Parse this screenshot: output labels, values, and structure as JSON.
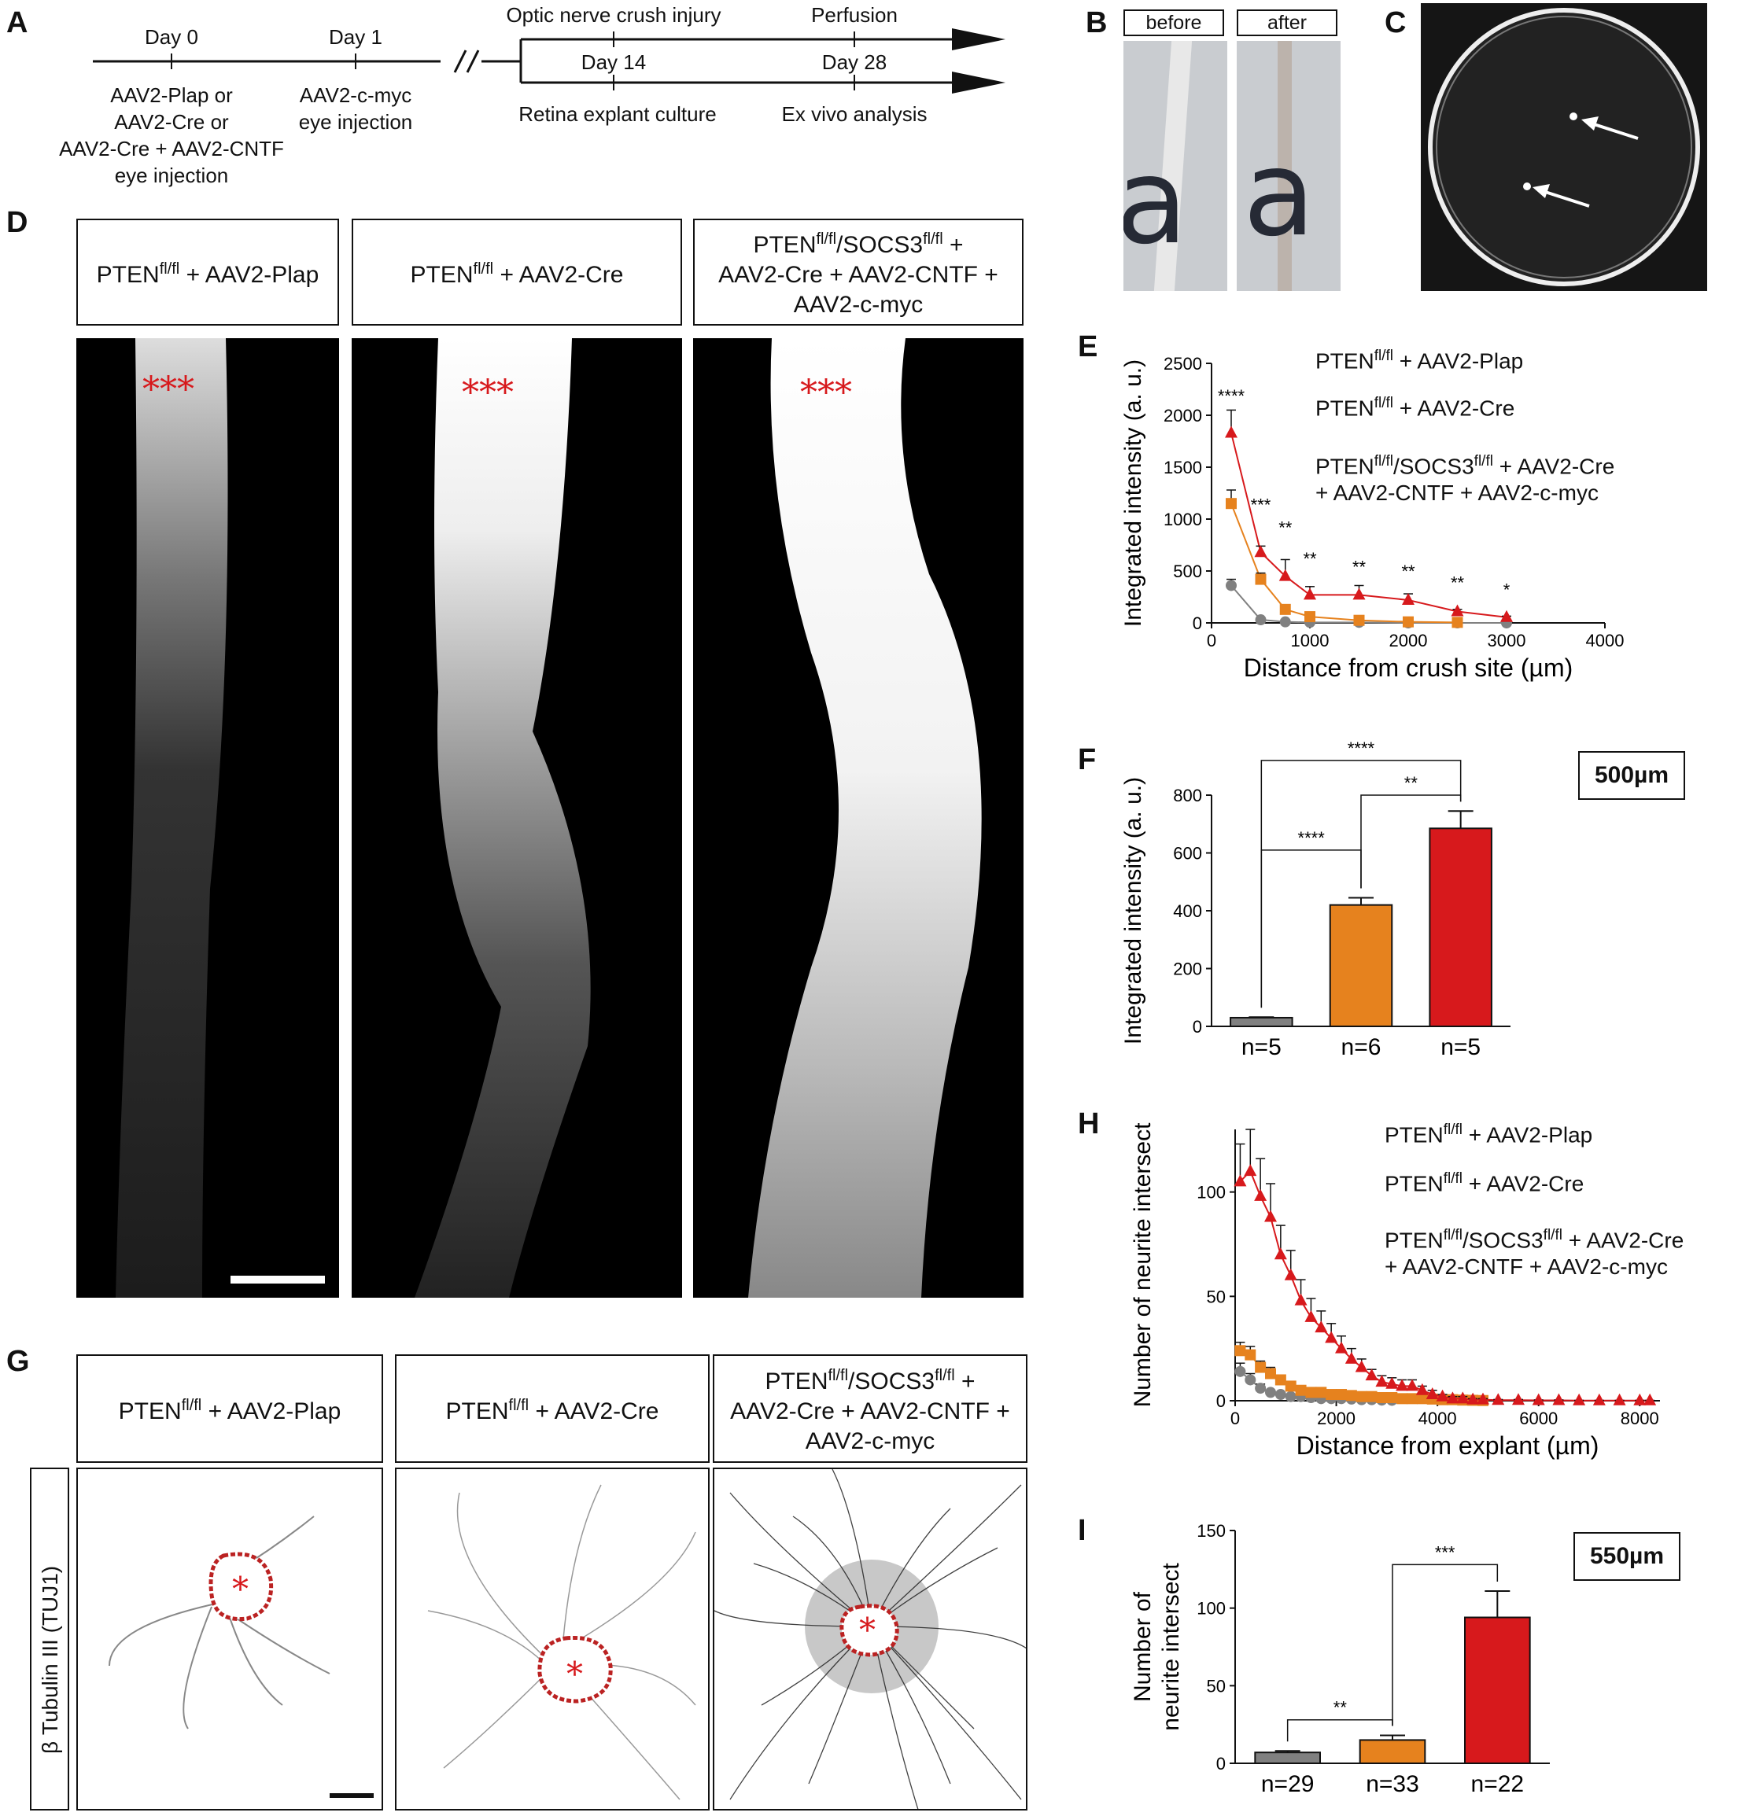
{
  "panels": {
    "A": "A",
    "B": "B",
    "C": "C",
    "D": "D",
    "E": "E",
    "F": "F",
    "G": "G",
    "H": "H",
    "I": "I"
  },
  "timeline": {
    "day0": "Day 0",
    "day1": "Day 1",
    "day0_desc": [
      "AAV2-Plap or",
      "AAV2-Cre or",
      "AAV2-Cre + AAV2-CNTF",
      "eye injection"
    ],
    "day1_desc": [
      "AAV2-c-myc",
      "eye injection"
    ],
    "top1": "Optic nerve crush injury",
    "top2": "Perfusion",
    "day14": "Day 14",
    "day28": "Day 28",
    "bottom1": "Retina explant culture",
    "bottom2": "Ex vivo analysis"
  },
  "panel_b": {
    "before": "before",
    "after": "after"
  },
  "groups": {
    "g1_base": "PTEN",
    "g1_sup": "fl/fl",
    "g1_rest": " + AAV2-Plap",
    "g2_base": "PTEN",
    "g2_sup": "fl/fl",
    "g2_rest": " + AAV2-Cre",
    "g3_base": "PTEN",
    "g3_sup": "fl/fl",
    "g3_mid": "/SOCS3",
    "g3_sup2": "fl/fl",
    "g3_line1_end": " +",
    "g3_line2": "AAV2-Cre + AAV2-CNTF +",
    "g3_line3": "AAV2-c-myc",
    "g3_legend_l1_end": " + AAV2-Cre",
    "g3_legend_l2": "+ AAV2-CNTF + AAV2-c-myc"
  },
  "asterisks_d": "***",
  "asterisk_g": "*",
  "g_side_label": "β Tubulin III (TUJ1)",
  "colors": {
    "gray": "#808080",
    "orange": "#E6821E",
    "red": "#D7191C",
    "asterisk": "#D7191C"
  },
  "chart_data": [
    {
      "id": "E",
      "type": "line",
      "xlabel": "Distance from crush site (µm)",
      "ylabel": "Integrated intensity (a. u.)",
      "xlim": [
        0,
        4000
      ],
      "ylim": [
        0,
        2500
      ],
      "xticks": [
        0,
        1000,
        2000,
        3000,
        4000
      ],
      "yticks": [
        0,
        500,
        1000,
        1500,
        2000,
        2500
      ],
      "series": [
        {
          "color": "gray",
          "marker": "circle",
          "x": [
            200,
            500,
            750,
            1000,
            1500,
            2000,
            2500,
            3000
          ],
          "y": [
            360,
            30,
            10,
            5,
            5,
            0,
            0,
            0
          ],
          "err": [
            60,
            10,
            5,
            5,
            5,
            0,
            0,
            0
          ]
        },
        {
          "color": "orange",
          "marker": "square",
          "x": [
            200,
            500,
            750,
            1000,
            1500,
            2000,
            2500
          ],
          "y": [
            1150,
            420,
            130,
            60,
            25,
            10,
            5
          ],
          "err": [
            130,
            60,
            40,
            20,
            10,
            5,
            5
          ]
        },
        {
          "color": "red",
          "marker": "triangle",
          "x": [
            200,
            500,
            750,
            1000,
            1500,
            2000,
            2500,
            3000
          ],
          "y": [
            1830,
            680,
            450,
            270,
            270,
            220,
            110,
            55
          ],
          "err": [
            220,
            60,
            160,
            80,
            90,
            60,
            20,
            10
          ]
        }
      ],
      "annotations": [
        {
          "x": 200,
          "y": 2130,
          "text": "****"
        },
        {
          "x": 500,
          "y": 1080,
          "text": "***"
        },
        {
          "x": 750,
          "y": 860,
          "text": "**"
        },
        {
          "x": 1000,
          "y": 560,
          "text": "**"
        },
        {
          "x": 1500,
          "y": 480,
          "text": "**"
        },
        {
          "x": 2000,
          "y": 440,
          "text": "**"
        },
        {
          "x": 2500,
          "y": 330,
          "text": "**"
        },
        {
          "x": 3000,
          "y": 260,
          "text": "*"
        }
      ]
    },
    {
      "id": "F",
      "type": "bar",
      "ylabel": "Integrated intensity (a. u.)",
      "ylim": [
        0,
        800
      ],
      "yticks": [
        0,
        200,
        400,
        600,
        800
      ],
      "categories": [
        "n=5",
        "n=6",
        "n=5"
      ],
      "values": [
        30,
        420,
        685
      ],
      "errors": [
        2,
        25,
        60
      ],
      "colors": [
        "gray",
        "orange",
        "red"
      ],
      "scale_label": "500µm",
      "brackets": [
        {
          "from": 0,
          "to": 1,
          "y": 610,
          "text": "****"
        },
        {
          "from": 1,
          "to": 2,
          "y": 800,
          "text": "**"
        },
        {
          "from": 0,
          "to": 2,
          "y": 920,
          "text": "****"
        }
      ]
    },
    {
      "id": "H",
      "type": "line",
      "xlabel": "Distance from explant (µm)",
      "ylabel": "Number of neurite intersect",
      "xlim": [
        0,
        8400
      ],
      "ylim": [
        0,
        130
      ],
      "xticks": [
        0,
        2000,
        4000,
        6000,
        8000
      ],
      "yticks": [
        0,
        50,
        100
      ],
      "series": [
        {
          "color": "gray",
          "marker": "circle",
          "x": [
            100,
            300,
            500,
            700,
            900,
            1100,
            1300,
            1500,
            1700,
            1900,
            2100,
            2300,
            2500,
            2700,
            2900,
            3100
          ],
          "y": [
            14,
            10,
            6,
            4,
            3,
            2,
            2,
            1.5,
            1,
            1,
            1,
            0.8,
            0.5,
            0.5,
            0.3,
            0.2
          ],
          "err": [
            4,
            3,
            2,
            1,
            1,
            1,
            1,
            0.5,
            0.5,
            0.5,
            0.5,
            0.3,
            0.3,
            0.3,
            0.2,
            0.1
          ]
        },
        {
          "color": "orange",
          "marker": "square",
          "x": [
            100,
            300,
            500,
            700,
            900,
            1100,
            1300,
            1500,
            1700,
            1900,
            2100,
            2300,
            2500,
            2700,
            2900,
            3100,
            3300,
            3500,
            3700,
            3900,
            4100,
            4300,
            4500,
            4700,
            4900
          ],
          "y": [
            24,
            22,
            16,
            13,
            10,
            7,
            5,
            4,
            4,
            3,
            3,
            2.5,
            2,
            2,
            1.5,
            1.5,
            1,
            1,
            1,
            0.8,
            0.5,
            0.5,
            0.3,
            0.2,
            0.1
          ],
          "err": [
            4,
            4,
            3,
            3,
            2,
            2,
            1,
            1,
            1,
            1,
            1,
            0.5,
            0.5,
            0.5,
            0.5,
            0.5,
            0.5,
            0.3,
            0.3,
            0.3,
            0.2,
            0.2,
            0.1,
            0.1,
            0.1
          ]
        },
        {
          "color": "red",
          "marker": "triangle",
          "x": [
            100,
            300,
            500,
            700,
            900,
            1100,
            1300,
            1500,
            1700,
            1900,
            2100,
            2300,
            2500,
            2700,
            2900,
            3100,
            3300,
            3500,
            3700,
            3900,
            4100,
            4300,
            4500,
            4700,
            4900,
            5200,
            5600,
            6000,
            6400,
            6800,
            7200,
            7600,
            8000,
            8200
          ],
          "y": [
            105,
            110,
            98,
            88,
            70,
            60,
            48,
            40,
            35,
            30,
            25,
            20,
            16,
            12,
            9,
            8,
            7,
            7,
            5,
            3,
            2,
            1,
            1,
            0.5,
            0.5,
            0.3,
            0.3,
            0.2,
            0.2,
            0.1,
            0.1,
            0.1,
            0.1,
            0.1
          ],
          "err": [
            18,
            20,
            18,
            16,
            14,
            12,
            10,
            9,
            8,
            7,
            6,
            5,
            4,
            3,
            3,
            3,
            3,
            3,
            2,
            2,
            1,
            1,
            1,
            0.5,
            0.5,
            0.3,
            0.3,
            0.2,
            0.2,
            0.1,
            0.1,
            0.1,
            0.1,
            0.1
          ]
        }
      ]
    },
    {
      "id": "I",
      "type": "bar",
      "ylabel_lines": [
        "Number of",
        "neurite intersect"
      ],
      "ylim": [
        0,
        150
      ],
      "yticks": [
        0,
        50,
        100,
        150
      ],
      "categories": [
        "n=29",
        "n=33",
        "n=22"
      ],
      "values": [
        7,
        15,
        94
      ],
      "errors": [
        1,
        3,
        17
      ],
      "colors": [
        "gray",
        "orange",
        "red"
      ],
      "scale_label": "550µm",
      "brackets": [
        {
          "from": 0,
          "to": 1,
          "y": 28,
          "text": "**"
        },
        {
          "from": 1,
          "to": 2,
          "y": 128,
          "text": "***"
        }
      ]
    }
  ]
}
